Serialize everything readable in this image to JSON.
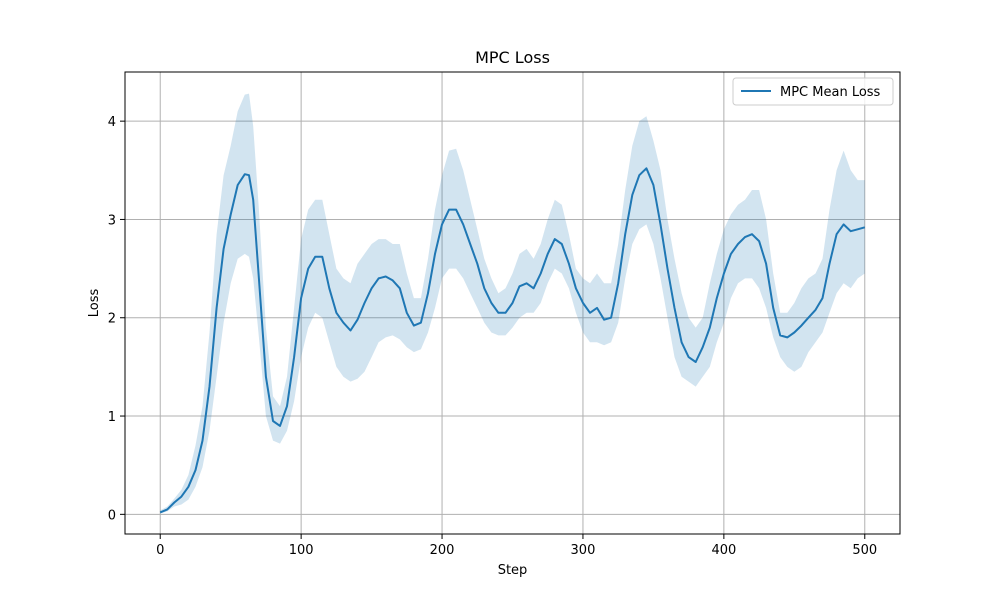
{
  "chart_data": {
    "type": "line",
    "title": "MPC Loss",
    "xlabel": "Step",
    "ylabel": "Loss",
    "xlim": [
      -25,
      525
    ],
    "ylim": [
      -0.2,
      4.5
    ],
    "xticks": [
      0,
      100,
      200,
      300,
      400,
      500
    ],
    "yticks": [
      0,
      1,
      2,
      3,
      4
    ],
    "grid": true,
    "legend_position": "top-right",
    "series": [
      {
        "name": "MPC Mean Loss",
        "color": "#1f77b4",
        "band_color": "#1f77b4",
        "band_opacity": 0.2,
        "x": [
          0,
          5,
          10,
          15,
          20,
          25,
          30,
          35,
          40,
          45,
          50,
          55,
          60,
          63,
          66,
          70,
          75,
          80,
          85,
          90,
          95,
          100,
          105,
          110,
          115,
          120,
          125,
          130,
          135,
          140,
          145,
          150,
          155,
          160,
          165,
          170,
          175,
          180,
          185,
          190,
          195,
          200,
          205,
          210,
          215,
          220,
          225,
          230,
          235,
          240,
          245,
          250,
          255,
          260,
          265,
          270,
          275,
          280,
          285,
          290,
          295,
          300,
          305,
          310,
          315,
          320,
          325,
          330,
          335,
          340,
          345,
          350,
          355,
          360,
          365,
          370,
          375,
          380,
          385,
          390,
          395,
          400,
          405,
          410,
          415,
          420,
          425,
          430,
          435,
          440,
          445,
          450,
          455,
          460,
          465,
          470,
          475,
          480,
          485,
          490,
          495,
          500
        ],
        "y": [
          0.02,
          0.05,
          0.12,
          0.18,
          0.28,
          0.45,
          0.75,
          1.3,
          2.1,
          2.7,
          3.05,
          3.35,
          3.46,
          3.45,
          3.2,
          2.4,
          1.4,
          0.95,
          0.9,
          1.1,
          1.6,
          2.2,
          2.5,
          2.62,
          2.62,
          2.3,
          2.05,
          1.95,
          1.87,
          1.98,
          2.15,
          2.3,
          2.4,
          2.42,
          2.38,
          2.3,
          2.05,
          1.92,
          1.95,
          2.25,
          2.65,
          2.95,
          3.1,
          3.1,
          2.95,
          2.75,
          2.55,
          2.3,
          2.15,
          2.05,
          2.05,
          2.15,
          2.32,
          2.35,
          2.3,
          2.45,
          2.65,
          2.8,
          2.75,
          2.55,
          2.3,
          2.15,
          2.05,
          2.1,
          1.98,
          2.0,
          2.35,
          2.85,
          3.25,
          3.45,
          3.52,
          3.35,
          2.95,
          2.5,
          2.1,
          1.75,
          1.6,
          1.55,
          1.7,
          1.9,
          2.2,
          2.45,
          2.65,
          2.75,
          2.82,
          2.85,
          2.78,
          2.55,
          2.1,
          1.82,
          1.8,
          1.85,
          1.92,
          2.0,
          2.08,
          2.2,
          2.55,
          2.85,
          2.95,
          2.88,
          2.9,
          2.92
        ],
        "lower": [
          0.01,
          0.03,
          0.08,
          0.1,
          0.15,
          0.28,
          0.48,
          0.85,
          1.4,
          1.95,
          2.35,
          2.6,
          2.65,
          2.62,
          2.4,
          1.8,
          1.0,
          0.75,
          0.72,
          0.85,
          1.15,
          1.6,
          1.9,
          2.05,
          2.0,
          1.75,
          1.5,
          1.4,
          1.35,
          1.38,
          1.45,
          1.6,
          1.75,
          1.8,
          1.82,
          1.78,
          1.7,
          1.65,
          1.68,
          1.85,
          2.1,
          2.4,
          2.5,
          2.5,
          2.4,
          2.25,
          2.1,
          1.95,
          1.85,
          1.82,
          1.82,
          1.9,
          2.0,
          2.05,
          2.05,
          2.15,
          2.35,
          2.5,
          2.45,
          2.3,
          2.05,
          1.85,
          1.75,
          1.75,
          1.72,
          1.75,
          1.95,
          2.4,
          2.75,
          2.9,
          2.95,
          2.75,
          2.4,
          2.0,
          1.6,
          1.4,
          1.35,
          1.3,
          1.4,
          1.5,
          1.75,
          1.95,
          2.2,
          2.35,
          2.4,
          2.4,
          2.3,
          2.1,
          1.8,
          1.6,
          1.5,
          1.45,
          1.5,
          1.65,
          1.75,
          1.85,
          2.05,
          2.25,
          2.35,
          2.3,
          2.4,
          2.45
        ],
        "upper": [
          0.04,
          0.08,
          0.16,
          0.25,
          0.4,
          0.7,
          1.1,
          1.85,
          2.85,
          3.45,
          3.75,
          4.1,
          4.27,
          4.28,
          3.95,
          3.1,
          1.9,
          1.2,
          1.1,
          1.4,
          2.1,
          2.8,
          3.1,
          3.2,
          3.2,
          2.85,
          2.5,
          2.4,
          2.35,
          2.55,
          2.65,
          2.75,
          2.8,
          2.8,
          2.75,
          2.75,
          2.45,
          2.2,
          2.2,
          2.6,
          3.1,
          3.45,
          3.7,
          3.72,
          3.5,
          3.2,
          2.9,
          2.6,
          2.4,
          2.25,
          2.3,
          2.45,
          2.65,
          2.7,
          2.6,
          2.75,
          3.0,
          3.2,
          3.15,
          2.85,
          2.5,
          2.4,
          2.35,
          2.45,
          2.35,
          2.35,
          2.75,
          3.3,
          3.75,
          4.0,
          4.05,
          3.8,
          3.5,
          3.0,
          2.6,
          2.25,
          2.0,
          1.9,
          2.0,
          2.35,
          2.65,
          2.9,
          3.05,
          3.15,
          3.2,
          3.3,
          3.3,
          3.0,
          2.45,
          2.05,
          2.05,
          2.15,
          2.3,
          2.4,
          2.45,
          2.6,
          3.1,
          3.5,
          3.7,
          3.5,
          3.4,
          3.4
        ]
      }
    ]
  }
}
